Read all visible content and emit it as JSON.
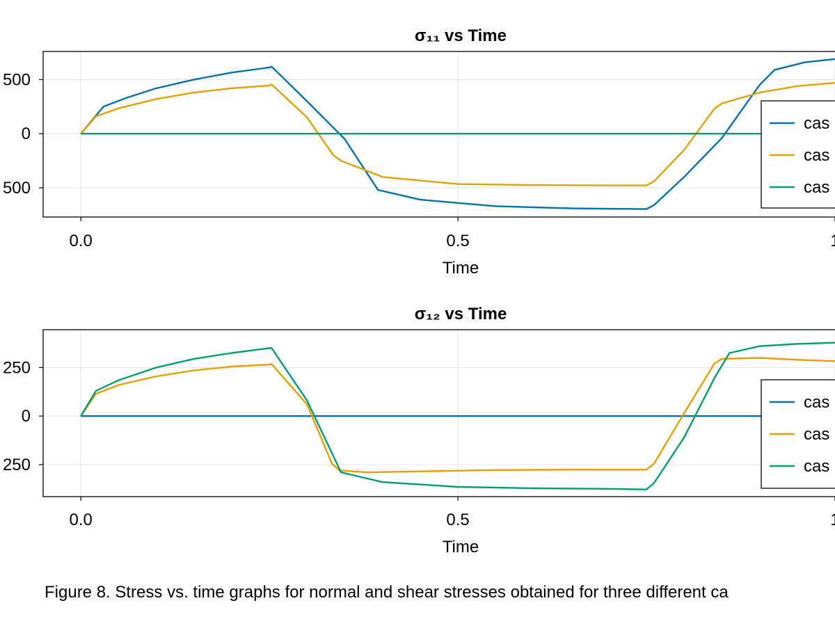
{
  "caption": "Figure 8. Stress vs. time graphs for normal and shear stresses obtained for three different ca",
  "chart_data": [
    {
      "type": "line",
      "title": "σ₁₁ vs Time",
      "xlabel": "Time",
      "ylabel": "",
      "xlim": [
        -0.05,
        1.0
      ],
      "ylim": [
        -770,
        760
      ],
      "xticks": [
        "0.0",
        "0.5",
        "1"
      ],
      "xtick_values": [
        0.0,
        0.5,
        1.0
      ],
      "yticks": [
        "500",
        "0",
        "500"
      ],
      "ytick_values": [
        500,
        0,
        -500
      ],
      "grid": true,
      "legend": {
        "position": "right",
        "entries": [
          "cas",
          "cas",
          "cas"
        ]
      },
      "series": [
        {
          "color": "#0072b2",
          "x": [
            0.0,
            0.03,
            0.06,
            0.1,
            0.15,
            0.2,
            0.25,
            0.253,
            0.3,
            0.35,
            0.394,
            0.45,
            0.55,
            0.65,
            0.75,
            0.76,
            0.8,
            0.85,
            0.9,
            0.92,
            0.96,
            1.0
          ],
          "y": [
            0,
            250,
            330,
            420,
            500,
            565,
            612,
            620,
            300,
            -50,
            -520,
            -610,
            -670,
            -690,
            -697,
            -660,
            -400,
            -40,
            450,
            590,
            660,
            690
          ]
        },
        {
          "color": "#e69f00",
          "x": [
            0.0,
            0.02,
            0.05,
            0.1,
            0.15,
            0.2,
            0.25,
            0.253,
            0.3,
            0.335,
            0.345,
            0.4,
            0.5,
            0.6,
            0.7,
            0.75,
            0.76,
            0.8,
            0.84,
            0.85,
            0.9,
            0.95,
            1.0
          ],
          "y": [
            0,
            160,
            235,
            320,
            380,
            420,
            445,
            455,
            150,
            -200,
            -250,
            -400,
            -465,
            -475,
            -478,
            -478,
            -440,
            -150,
            230,
            280,
            380,
            440,
            470
          ]
        },
        {
          "color": "#009e73",
          "x": [
            0.0,
            1.0
          ],
          "y": [
            0,
            0
          ]
        }
      ]
    },
    {
      "type": "line",
      "title": "σ₁₂ vs Time",
      "xlabel": "Time",
      "ylabel": "",
      "xlim": [
        -0.05,
        1.0
      ],
      "ylim": [
        -415,
        445
      ],
      "xticks": [
        "0.0",
        "0.5",
        "1"
      ],
      "xtick_values": [
        0.0,
        0.5,
        1.0
      ],
      "yticks": [
        "250",
        "0",
        "250"
      ],
      "ytick_values": [
        250,
        0,
        -250
      ],
      "grid": true,
      "legend": {
        "position": "right",
        "entries": [
          "cas",
          "cas",
          "cas"
        ]
      },
      "series": [
        {
          "color": "#0072b2",
          "x": [
            0.0,
            1.0
          ],
          "y": [
            0,
            0
          ]
        },
        {
          "color": "#e69f00",
          "x": [
            0.0,
            0.02,
            0.05,
            0.1,
            0.15,
            0.2,
            0.25,
            0.253,
            0.3,
            0.333,
            0.343,
            0.38,
            0.45,
            0.55,
            0.65,
            0.75,
            0.76,
            0.8,
            0.84,
            0.85,
            0.9,
            0.95,
            1.0
          ],
          "y": [
            0,
            115,
            160,
            205,
            235,
            255,
            265,
            268,
            60,
            -245,
            -280,
            -290,
            -285,
            -278,
            -276,
            -276,
            -245,
            15,
            270,
            295,
            300,
            290,
            283
          ]
        },
        {
          "color": "#009e73",
          "x": [
            0.0,
            0.02,
            0.05,
            0.1,
            0.15,
            0.2,
            0.25,
            0.253,
            0.3,
            0.345,
            0.4,
            0.5,
            0.6,
            0.7,
            0.75,
            0.76,
            0.8,
            0.84,
            0.86,
            0.9,
            0.95,
            1.0
          ],
          "y": [
            0,
            130,
            185,
            250,
            295,
            325,
            350,
            350,
            80,
            -290,
            -340,
            -365,
            -372,
            -375,
            -378,
            -345,
            -110,
            195,
            325,
            360,
            372,
            378
          ]
        }
      ]
    }
  ]
}
